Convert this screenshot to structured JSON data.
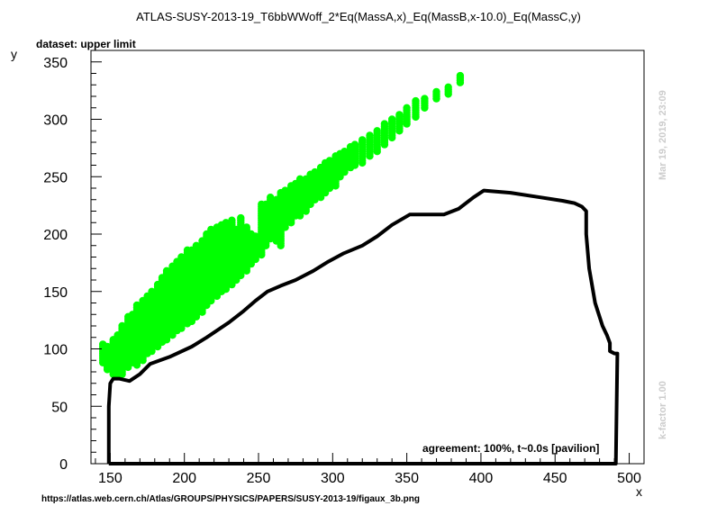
{
  "title": "ATLAS-SUSY-2013-19_T6bbWWoff_2*Eq(MassA,x)_Eq(MassB,x-10.0)_Eq(MassC,y)",
  "dataset_label": "dataset: upper limit",
  "agreement": "agreement: 100%, t~0.0s [pavilion]",
  "timestamp": "Mar 19, 2019, 23:09",
  "kfactor": "k-factor 1.00",
  "source_url": "https://atlas.web.cern.ch/Atlas/GROUPS/PHYSICS/PAPERS/SUSY-2013-19/figaux_3b.png",
  "chart_data": {
    "type": "scatter",
    "xlabel": "x",
    "ylabel": "y",
    "xlim": [
      137,
      510
    ],
    "ylim": [
      0,
      360
    ],
    "x_ticks": [
      150,
      200,
      250,
      300,
      350,
      400,
      450,
      500
    ],
    "y_ticks": [
      0,
      50,
      100,
      150,
      200,
      250,
      300,
      350
    ],
    "colors": {
      "points": "#00ff00",
      "contour": "#000000"
    },
    "points_bands": [
      {
        "x": 145,
        "y": [
          88,
          104
        ]
      },
      {
        "x": 148,
        "y": [
          82,
          102
        ]
      },
      {
        "x": 152,
        "y": [
          78,
          108
        ]
      },
      {
        "x": 155,
        "y": [
          78,
          112
        ]
      },
      {
        "x": 158,
        "y": [
          78,
          120
        ]
      },
      {
        "x": 162,
        "y": [
          84,
          128
        ]
      },
      {
        "x": 165,
        "y": [
          88,
          130
        ]
      },
      {
        "x": 168,
        "y": [
          86,
          138
        ]
      },
      {
        "x": 172,
        "y": [
          90,
          142
        ]
      },
      {
        "x": 175,
        "y": [
          96,
          146
        ]
      },
      {
        "x": 178,
        "y": [
          98,
          150
        ]
      },
      {
        "x": 182,
        "y": [
          102,
          156
        ]
      },
      {
        "x": 185,
        "y": [
          106,
          162
        ]
      },
      {
        "x": 188,
        "y": [
          108,
          168
        ]
      },
      {
        "x": 192,
        "y": [
          112,
          172
        ]
      },
      {
        "x": 195,
        "y": [
          116,
          176
        ]
      },
      {
        "x": 198,
        "y": [
          118,
          180
        ]
      },
      {
        "x": 202,
        "y": [
          122,
          186
        ]
      },
      {
        "x": 205,
        "y": [
          124,
          186
        ]
      },
      {
        "x": 208,
        "y": [
          128,
          190
        ]
      },
      {
        "x": 212,
        "y": [
          132,
          194
        ]
      },
      {
        "x": 215,
        "y": [
          138,
          200
        ]
      },
      {
        "x": 218,
        "y": [
          142,
          204
        ]
      },
      {
        "x": 222,
        "y": [
          146,
          206
        ]
      },
      {
        "x": 225,
        "y": [
          150,
          208
        ]
      },
      {
        "x": 228,
        "y": [
          152,
          210
        ]
      },
      {
        "x": 232,
        "y": [
          156,
          212
        ]
      },
      {
        "x": 235,
        "y": [
          160,
          204
        ]
      },
      {
        "x": 238,
        "y": [
          164,
          214
        ]
      },
      {
        "x": 242,
        "y": [
          168,
          206
        ]
      },
      {
        "x": 245,
        "y": [
          174,
          200
        ]
      },
      {
        "x": 248,
        "y": [
          178,
          198
        ]
      },
      {
        "x": 252,
        "y": [
          182,
          226
        ]
      },
      {
        "x": 255,
        "y": [
          190,
          226
        ]
      },
      {
        "x": 258,
        "y": [
          196,
          232
        ]
      },
      {
        "x": 262,
        "y": [
          194,
          230
        ]
      },
      {
        "x": 265,
        "y": [
          190,
          236
        ]
      },
      {
        "x": 268,
        "y": [
          206,
          238
        ]
      },
      {
        "x": 272,
        "y": [
          210,
          242
        ]
      },
      {
        "x": 275,
        "y": [
          216,
          244
        ]
      },
      {
        "x": 278,
        "y": [
          216,
          248
        ]
      },
      {
        "x": 282,
        "y": [
          220,
          248
        ]
      },
      {
        "x": 285,
        "y": [
          226,
          252
        ]
      },
      {
        "x": 288,
        "y": [
          230,
          254
        ]
      },
      {
        "x": 292,
        "y": [
          232,
          258
        ]
      },
      {
        "x": 295,
        "y": [
          236,
          262
        ]
      },
      {
        "x": 298,
        "y": [
          240,
          264
        ]
      },
      {
        "x": 302,
        "y": [
          242,
          268
        ]
      },
      {
        "x": 305,
        "y": [
          250,
          270
        ]
      },
      {
        "x": 308,
        "y": [
          254,
          272
        ]
      },
      {
        "x": 312,
        "y": [
          258,
          276
        ]
      },
      {
        "x": 315,
        "y": [
          260,
          278
        ]
      },
      {
        "x": 320,
        "y": [
          262,
          282
        ]
      },
      {
        "x": 325,
        "y": [
          268,
          286
        ]
      },
      {
        "x": 330,
        "y": [
          272,
          290
        ]
      },
      {
        "x": 335,
        "y": [
          278,
          296
        ]
      },
      {
        "x": 340,
        "y": [
          284,
          300
        ]
      },
      {
        "x": 345,
        "y": [
          290,
          304
        ]
      },
      {
        "x": 350,
        "y": [
          296,
          310
        ]
      },
      {
        "x": 356,
        "y": [
          302,
          316
        ]
      },
      {
        "x": 362,
        "y": [
          310,
          318
        ]
      },
      {
        "x": 370,
        "y": [
          318,
          324
        ]
      },
      {
        "x": 378,
        "y": [
          322,
          328
        ]
      },
      {
        "x": 386,
        "y": [
          332,
          338
        ]
      }
    ],
    "contour": [
      [
        149,
        0
      ],
      [
        149,
        50
      ],
      [
        150,
        70
      ],
      [
        152,
        74
      ],
      [
        156,
        74
      ],
      [
        163,
        72
      ],
      [
        170,
        78
      ],
      [
        177,
        87
      ],
      [
        190,
        93
      ],
      [
        205,
        102
      ],
      [
        215,
        110
      ],
      [
        230,
        123
      ],
      [
        240,
        133
      ],
      [
        248,
        142
      ],
      [
        256,
        150
      ],
      [
        265,
        155
      ],
      [
        275,
        160
      ],
      [
        287,
        168
      ],
      [
        297,
        176
      ],
      [
        307,
        183
      ],
      [
        320,
        190
      ],
      [
        330,
        198
      ],
      [
        340,
        208
      ],
      [
        352,
        217
      ],
      [
        365,
        217
      ],
      [
        375,
        217
      ],
      [
        385,
        222
      ],
      [
        395,
        232
      ],
      [
        402,
        238
      ],
      [
        420,
        236
      ],
      [
        440,
        232
      ],
      [
        455,
        229
      ],
      [
        463,
        227
      ],
      [
        468,
        224
      ],
      [
        471,
        220
      ],
      [
        471,
        200
      ],
      [
        473,
        170
      ],
      [
        477,
        140
      ],
      [
        482,
        120
      ],
      [
        485,
        112
      ],
      [
        487,
        105
      ],
      [
        487,
        98
      ],
      [
        490,
        96
      ],
      [
        492,
        96
      ],
      [
        491,
        0
      ],
      [
        149,
        0
      ]
    ]
  }
}
